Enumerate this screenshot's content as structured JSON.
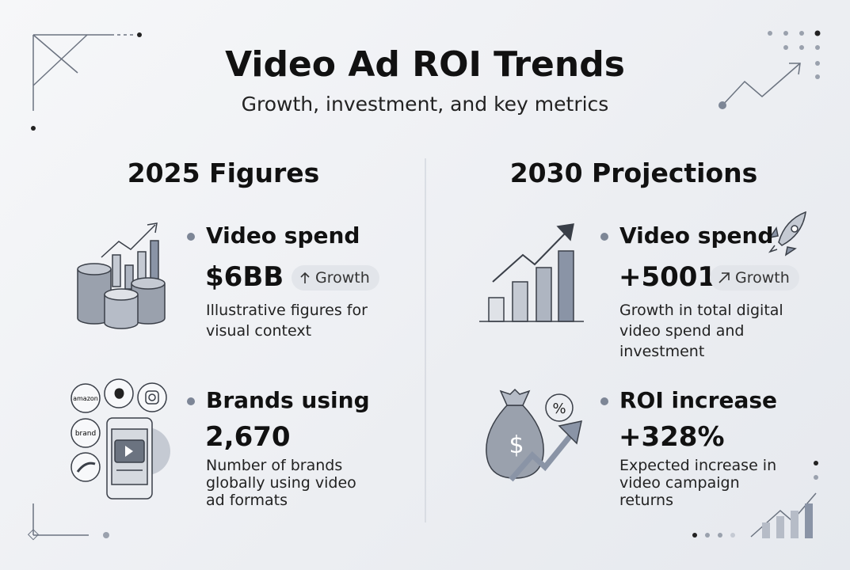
{
  "header": {
    "title": "Video Ad ROI Trends",
    "subtitle": "Growth, investment, and key metrics"
  },
  "sections": [
    {
      "heading": "2025 Figures",
      "items": [
        {
          "label": "Video spend",
          "value": "$6BB",
          "badge": "Growth",
          "description": "Illustrative figures for visual context"
        },
        {
          "label": "Brands using",
          "value": "2,670",
          "description": "Number of brands globally using video ad formats",
          "icon_texts": [
            "amazon",
            "brand"
          ]
        }
      ]
    },
    {
      "heading": "2030 Projections",
      "items": [
        {
          "label": "Video spend",
          "value": "+5001",
          "badge": "Growth",
          "description": "Growth in total digital video spend and investment"
        },
        {
          "label": "ROI increase",
          "value": "+328%",
          "description": "Expected increase in video campaign returns",
          "icon_texts": [
            "$",
            "%"
          ]
        }
      ]
    }
  ]
}
